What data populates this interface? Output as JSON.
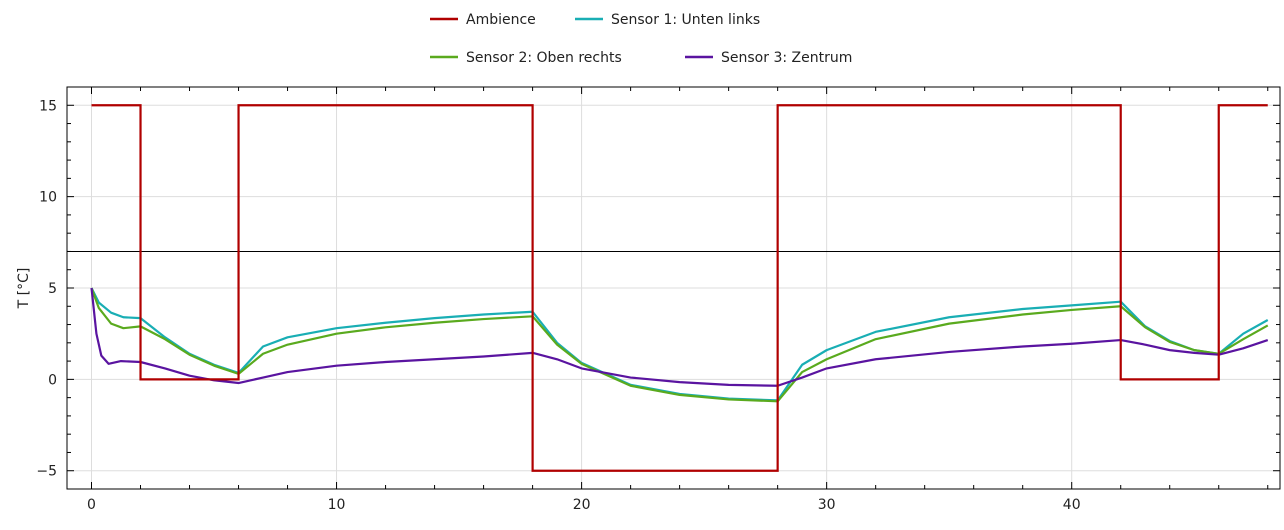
{
  "chart_data": {
    "type": "line",
    "title": "",
    "xlabel": "",
    "ylabel": "T [°C]",
    "xlim": [
      -1,
      48.5
    ],
    "ylim": [
      -6,
      16
    ],
    "xticks": [
      0,
      10,
      20,
      30,
      40
    ],
    "yticks": [
      -5,
      0,
      5,
      10,
      15
    ],
    "grid": true,
    "legend": "top-center",
    "reference_line": {
      "y": 7,
      "color": "#000000"
    },
    "series": [
      {
        "name": "Ambience",
        "color": "#b00000",
        "step": true,
        "points": [
          [
            0,
            15
          ],
          [
            2,
            15
          ],
          [
            2,
            0
          ],
          [
            6,
            0
          ],
          [
            6,
            15
          ],
          [
            18,
            15
          ],
          [
            18,
            -5
          ],
          [
            28,
            -5
          ],
          [
            28,
            15
          ],
          [
            42,
            15
          ],
          [
            42,
            0
          ],
          [
            46,
            0
          ],
          [
            46,
            15
          ],
          [
            48,
            15
          ]
        ]
      },
      {
        "name": "Sensor 1: Unten links",
        "color": "#19aeb4",
        "points": [
          [
            0,
            5
          ],
          [
            0.3,
            4.2
          ],
          [
            0.8,
            3.65
          ],
          [
            1.3,
            3.4
          ],
          [
            2,
            3.35
          ],
          [
            3,
            2.3
          ],
          [
            4,
            1.4
          ],
          [
            5,
            0.8
          ],
          [
            6,
            0.35
          ],
          [
            7,
            1.8
          ],
          [
            8,
            2.3
          ],
          [
            10,
            2.8
          ],
          [
            12,
            3.1
          ],
          [
            14,
            3.35
          ],
          [
            16,
            3.55
          ],
          [
            18,
            3.7
          ],
          [
            19,
            2.0
          ],
          [
            20,
            0.9
          ],
          [
            22,
            -0.3
          ],
          [
            24,
            -0.8
          ],
          [
            26,
            -1.05
          ],
          [
            28,
            -1.15
          ],
          [
            29,
            0.8
          ],
          [
            30,
            1.6
          ],
          [
            32,
            2.6
          ],
          [
            35,
            3.4
          ],
          [
            38,
            3.85
          ],
          [
            40,
            4.05
          ],
          [
            42,
            4.25
          ],
          [
            43,
            2.9
          ],
          [
            44,
            2.1
          ],
          [
            45,
            1.6
          ],
          [
            46,
            1.4
          ],
          [
            47,
            2.5
          ],
          [
            48,
            3.25
          ]
        ]
      },
      {
        "name": "Sensor 2: Oben rechts",
        "color": "#5aaa1e",
        "points": [
          [
            0,
            5
          ],
          [
            0.3,
            3.9
          ],
          [
            0.8,
            3.05
          ],
          [
            1.3,
            2.8
          ],
          [
            2,
            2.9
          ],
          [
            3,
            2.2
          ],
          [
            4,
            1.35
          ],
          [
            5,
            0.75
          ],
          [
            6,
            0.3
          ],
          [
            7,
            1.4
          ],
          [
            8,
            1.9
          ],
          [
            10,
            2.5
          ],
          [
            12,
            2.85
          ],
          [
            14,
            3.1
          ],
          [
            16,
            3.3
          ],
          [
            18,
            3.45
          ],
          [
            19,
            1.9
          ],
          [
            20,
            0.85
          ],
          [
            22,
            -0.35
          ],
          [
            24,
            -0.85
          ],
          [
            26,
            -1.1
          ],
          [
            28,
            -1.2
          ],
          [
            29,
            0.4
          ],
          [
            30,
            1.1
          ],
          [
            32,
            2.2
          ],
          [
            35,
            3.05
          ],
          [
            38,
            3.55
          ],
          [
            40,
            3.8
          ],
          [
            42,
            4.0
          ],
          [
            43,
            2.85
          ],
          [
            44,
            2.05
          ],
          [
            45,
            1.6
          ],
          [
            46,
            1.4
          ],
          [
            47,
            2.2
          ],
          [
            48,
            2.95
          ]
        ]
      },
      {
        "name": "Sensor 3: Zentrum",
        "color": "#5a14a0",
        "points": [
          [
            0,
            5
          ],
          [
            0.2,
            2.5
          ],
          [
            0.4,
            1.3
          ],
          [
            0.7,
            0.85
          ],
          [
            1.2,
            1.0
          ],
          [
            2,
            0.95
          ],
          [
            3,
            0.6
          ],
          [
            4,
            0.2
          ],
          [
            5,
            -0.05
          ],
          [
            6,
            -0.2
          ],
          [
            7,
            0.1
          ],
          [
            8,
            0.4
          ],
          [
            10,
            0.75
          ],
          [
            12,
            0.95
          ],
          [
            14,
            1.1
          ],
          [
            16,
            1.25
          ],
          [
            18,
            1.45
          ],
          [
            19,
            1.1
          ],
          [
            20,
            0.6
          ],
          [
            22,
            0.1
          ],
          [
            24,
            -0.15
          ],
          [
            26,
            -0.3
          ],
          [
            28,
            -0.35
          ],
          [
            29,
            0.1
          ],
          [
            30,
            0.6
          ],
          [
            32,
            1.1
          ],
          [
            35,
            1.5
          ],
          [
            38,
            1.8
          ],
          [
            40,
            1.95
          ],
          [
            42,
            2.15
          ],
          [
            43,
            1.9
          ],
          [
            44,
            1.6
          ],
          [
            45,
            1.45
          ],
          [
            46,
            1.35
          ],
          [
            47,
            1.7
          ],
          [
            48,
            2.15
          ]
        ]
      }
    ]
  }
}
